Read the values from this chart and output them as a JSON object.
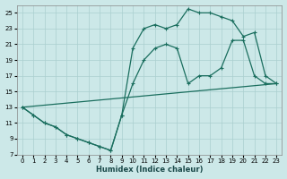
{
  "xlabel": "Humidex (Indice chaleur)",
  "bg_color": "#cce8e8",
  "grid_color": "#aacfcf",
  "line_color": "#1a6e5e",
  "xlim": [
    -0.5,
    23.5
  ],
  "ylim": [
    7,
    26
  ],
  "xticks": [
    0,
    1,
    2,
    3,
    4,
    5,
    6,
    7,
    8,
    9,
    10,
    11,
    12,
    13,
    14,
    15,
    16,
    17,
    18,
    19,
    20,
    21,
    22,
    23
  ],
  "yticks": [
    7,
    9,
    11,
    13,
    15,
    17,
    19,
    21,
    23,
    25
  ],
  "curve_upper": {
    "x": [
      0,
      1,
      2,
      3,
      4,
      5,
      6,
      7,
      8,
      9,
      10,
      11,
      12,
      13,
      14,
      15,
      16,
      17,
      18,
      19,
      20,
      21,
      22,
      23
    ],
    "y": [
      13,
      12,
      11,
      10.5,
      9.5,
      9.0,
      8.5,
      8.0,
      7.5,
      12.0,
      20.5,
      23.0,
      23.5,
      23.0,
      23.5,
      25.5,
      25.0,
      25.0,
      24.5,
      24.0,
      22.0,
      22.5,
      17.0,
      16.0
    ]
  },
  "curve_lower": {
    "x": [
      0,
      1,
      2,
      3,
      4,
      5,
      6,
      7,
      8,
      9,
      10,
      11,
      12,
      13,
      14,
      15,
      16,
      17,
      18,
      19,
      20,
      21,
      22,
      23
    ],
    "y": [
      13,
      12,
      11,
      10.5,
      9.5,
      9.0,
      8.5,
      8.0,
      7.5,
      12.0,
      16.0,
      19.0,
      20.5,
      21.0,
      20.5,
      16.0,
      17.0,
      17.0,
      18.0,
      21.5,
      21.5,
      17.0,
      16.0,
      16.0
    ]
  },
  "line_diag": {
    "x": [
      0,
      23
    ],
    "y": [
      13,
      16
    ]
  }
}
